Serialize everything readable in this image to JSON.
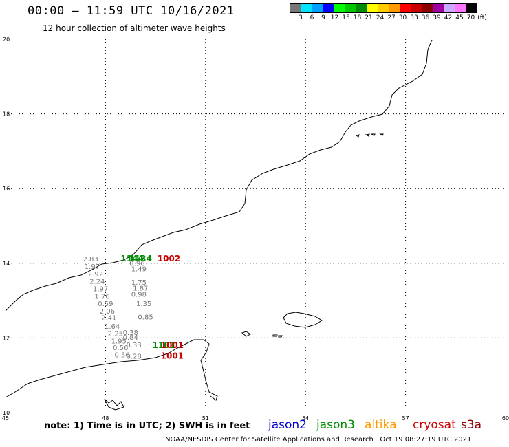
{
  "header": {
    "title": "00:00 – 11:59 UTC 10/16/2021",
    "subtitle": "12 hour collection of altimeter wave heights"
  },
  "legend": {
    "colors": [
      "#777777",
      "#00e5ff",
      "#00a0ff",
      "#0000ff",
      "#00ff00",
      "#00c800",
      "#008c00",
      "#ffff00",
      "#ffcc00",
      "#ff9900",
      "#ff0000",
      "#c80000",
      "#8b0000",
      "#a000a0",
      "#ccaaff",
      "#ff77ff",
      "#000000"
    ],
    "labels": [
      "3",
      "6",
      "9",
      "12",
      "15",
      "18",
      "21",
      "24",
      "27",
      "30",
      "33",
      "36",
      "39",
      "42",
      "45",
      "70",
      "(ft)"
    ]
  },
  "axes": {
    "lon_ticks": [
      "45",
      "48",
      "51",
      "54",
      "57",
      "60"
    ],
    "lat_ticks": [
      "20",
      "18",
      "16",
      "14",
      "12",
      "10"
    ]
  },
  "observations": [
    {
      "text": "2.83",
      "lon": 47.55,
      "lat": 14.05,
      "color": "#777777"
    },
    {
      "text": "1.97",
      "lon": 47.6,
      "lat": 13.85,
      "color": "#777777"
    },
    {
      "text": "2.92",
      "lon": 47.7,
      "lat": 13.65,
      "color": "#777777"
    },
    {
      "text": "2.24",
      "lon": 47.75,
      "lat": 13.45,
      "color": "#777777"
    },
    {
      "text": "1.97",
      "lon": 47.85,
      "lat": 13.25,
      "color": "#777777"
    },
    {
      "text": "1.76",
      "lon": 47.9,
      "lat": 13.05,
      "color": "#777777"
    },
    {
      "text": "0.59",
      "lon": 48.0,
      "lat": 12.85,
      "color": "#777777"
    },
    {
      "text": "2.06",
      "lon": 48.05,
      "lat": 12.65,
      "color": "#777777"
    },
    {
      "text": "2.41",
      "lon": 48.1,
      "lat": 12.48,
      "color": "#777777"
    },
    {
      "text": "1.64",
      "lon": 48.2,
      "lat": 12.25,
      "color": "#777777"
    },
    {
      "text": "2.25",
      "lon": 48.3,
      "lat": 12.05,
      "color": "#777777"
    },
    {
      "text": "1.95",
      "lon": 48.4,
      "lat": 11.85,
      "color": "#777777"
    },
    {
      "text": "0.56",
      "lon": 48.45,
      "lat": 11.68,
      "color": "#777777"
    },
    {
      "text": "0.56",
      "lon": 48.5,
      "lat": 11.48,
      "color": "#777777"
    },
    {
      "text": "0.96",
      "lon": 48.95,
      "lat": 13.93,
      "color": "#777777"
    },
    {
      "text": "1.49",
      "lon": 49.0,
      "lat": 13.78,
      "color": "#777777"
    },
    {
      "text": "1.75",
      "lon": 49.0,
      "lat": 13.43,
      "color": "#777777"
    },
    {
      "text": "1.87",
      "lon": 49.05,
      "lat": 13.27,
      "color": "#777777"
    },
    {
      "text": "0.98",
      "lon": 49.0,
      "lat": 13.1,
      "color": "#777777"
    },
    {
      "text": "1.35",
      "lon": 49.15,
      "lat": 12.85,
      "color": "#777777"
    },
    {
      "text": "0.85",
      "lon": 49.2,
      "lat": 12.5,
      "color": "#777777"
    },
    {
      "text": "0.38",
      "lon": 48.75,
      "lat": 12.08,
      "color": "#777777"
    },
    {
      "text": "0.84",
      "lon": 48.75,
      "lat": 11.95,
      "color": "#777777"
    },
    {
      "text": "0.33",
      "lon": 48.85,
      "lat": 11.75,
      "color": "#777777"
    },
    {
      "text": "0.28",
      "lon": 48.85,
      "lat": 11.45,
      "color": "#777777"
    },
    {
      "text": "1144",
      "lon": 48.8,
      "lat": 14.05,
      "color": "#008c00"
    },
    {
      "text": "1134",
      "lon": 49.05,
      "lat": 14.05,
      "color": "#008c00"
    },
    {
      "text": "1002",
      "lon": 49.9,
      "lat": 14.05,
      "color": "#c80000"
    },
    {
      "text": "1101",
      "lon": 49.75,
      "lat": 11.73,
      "color": "#008c00"
    },
    {
      "text": "1001",
      "lon": 50.0,
      "lat": 11.73,
      "color": "#c80000"
    },
    {
      "text": "1001",
      "lon": 50.0,
      "lat": 11.45,
      "color": "#c80000"
    }
  ],
  "footer": {
    "note": "note: 1) Time is in UTC; 2) SWH is in feet",
    "satellites": [
      {
        "name": "jason2",
        "color": "#0000cc"
      },
      {
        "name": "jason3",
        "color": "#008c00"
      },
      {
        "name": "altika",
        "color": "#ff9900"
      },
      {
        "name": "cryosat",
        "color": "#cc0000"
      },
      {
        "name": "s3a",
        "color": "#8b0000"
      }
    ],
    "credit": "NOAA/NESDIS Center for Satellite Applications and Research   Oct 19 08:27:19 UTC 2021"
  }
}
